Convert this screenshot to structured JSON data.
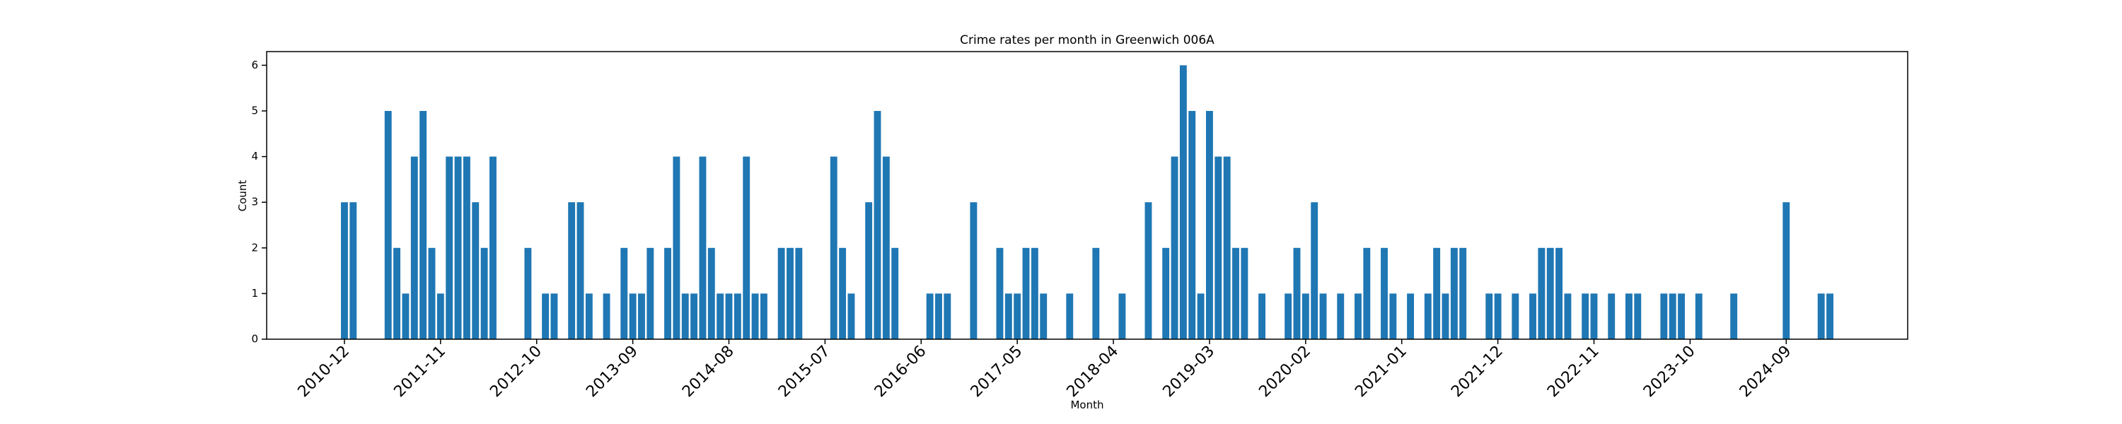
{
  "chart_data": {
    "type": "bar",
    "title": "Crime rates per month in Greenwich 006A",
    "x_label": "Month",
    "y_label": "Count",
    "color": "#1f77b4",
    "categories": [
      "2010-12",
      null,
      null,
      null,
      null,
      null,
      null,
      null,
      null,
      null,
      null,
      "2011-11",
      null,
      null,
      null,
      null,
      null,
      null,
      null,
      null,
      null,
      null,
      "2012-10",
      null,
      null,
      null,
      null,
      null,
      null,
      null,
      null,
      null,
      null,
      "2013-09",
      null,
      null,
      null,
      null,
      null,
      null,
      null,
      null,
      null,
      null,
      "2014-08",
      null,
      null,
      null,
      null,
      null,
      null,
      null,
      null,
      null,
      null,
      "2015-07",
      null,
      null,
      null,
      null,
      null,
      null,
      null,
      null,
      null,
      null,
      "2016-06",
      null,
      null,
      null,
      null,
      null,
      null,
      null,
      null,
      null,
      null,
      "2017-05",
      null,
      null,
      null,
      null,
      null,
      null,
      null,
      null,
      null,
      null,
      "2018-04",
      null,
      null,
      null,
      null,
      null,
      null,
      null,
      null,
      null,
      null,
      "2019-03",
      null,
      null,
      null,
      null,
      null,
      null,
      null,
      null,
      null,
      null,
      "2020-02",
      null,
      null,
      null,
      null,
      null,
      null,
      null,
      null,
      null,
      null,
      "2021-01",
      null,
      null,
      null,
      null,
      null,
      null,
      null,
      null,
      null,
      null,
      "2021-12",
      null,
      null,
      null,
      null,
      null,
      null,
      null,
      null,
      null,
      null,
      "2022-11",
      null,
      null,
      null,
      null,
      null,
      null,
      null,
      null,
      null,
      null,
      "2023-10",
      null,
      null,
      null,
      null,
      null,
      null,
      null,
      null,
      null,
      null,
      "2024-09",
      null,
      null,
      null,
      null,
      null
    ],
    "values": [
      3,
      3,
      0,
      0,
      0,
      5,
      2,
      1,
      4,
      5,
      2,
      1,
      4,
      4,
      4,
      3,
      2,
      4,
      0,
      0,
      0,
      2,
      0,
      1,
      1,
      0,
      3,
      3,
      1,
      0,
      1,
      0,
      2,
      1,
      1,
      2,
      0,
      2,
      4,
      1,
      1,
      4,
      2,
      1,
      1,
      1,
      4,
      1,
      1,
      0,
      2,
      2,
      2,
      0,
      0,
      0,
      4,
      2,
      1,
      0,
      3,
      5,
      4,
      2,
      0,
      0,
      0,
      1,
      1,
      1,
      0,
      0,
      3,
      0,
      0,
      2,
      1,
      1,
      2,
      2,
      1,
      0,
      0,
      1,
      0,
      0,
      2,
      0,
      0,
      1,
      0,
      0,
      3,
      0,
      2,
      4,
      6,
      5,
      1,
      5,
      4,
      4,
      2,
      2,
      0,
      1,
      0,
      0,
      1,
      2,
      1,
      3,
      1,
      0,
      1,
      0,
      1,
      2,
      0,
      2,
      1,
      0,
      1,
      0,
      1,
      2,
      1,
      2,
      2,
      0,
      0,
      1,
      1,
      0,
      1,
      0,
      1,
      2,
      2,
      2,
      1,
      0,
      1,
      1,
      0,
      1,
      0,
      1,
      1,
      0,
      0,
      1,
      1,
      1,
      0,
      1,
      0,
      0,
      0,
      1,
      0,
      0,
      0,
      0,
      0,
      3,
      0,
      0,
      0,
      1,
      1
    ],
    "ylim": [
      0,
      6.3
    ],
    "yticks": [
      0,
      1,
      2,
      3,
      4,
      5,
      6
    ],
    "grid": false
  }
}
